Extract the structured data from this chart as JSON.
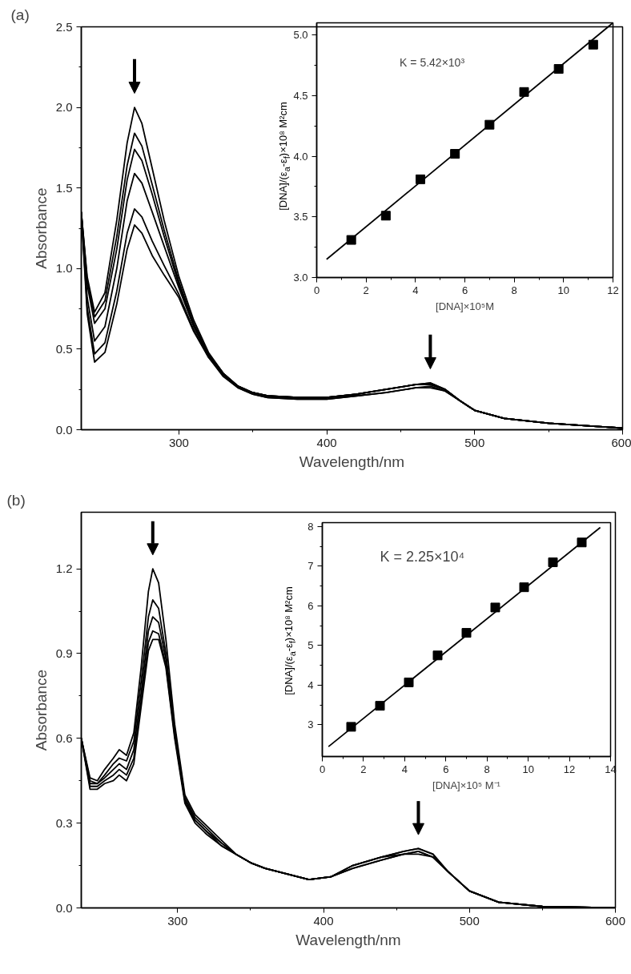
{
  "chart_data": [
    {
      "type": "line",
      "title": "(a)",
      "xlabel": "Wavelength/nm",
      "ylabel": "Absorbance",
      "x": [
        234,
        238,
        243,
        250,
        258,
        265,
        270,
        275,
        282,
        290,
        300,
        310,
        320,
        330,
        340,
        350,
        360,
        380,
        400,
        420,
        440,
        460,
        470,
        480,
        490,
        500,
        520,
        550,
        600
      ],
      "series": [
        {
          "color": "#000000",
          "values": [
            1.35,
            0.95,
            0.73,
            0.85,
            1.3,
            1.78,
            2.0,
            1.9,
            1.62,
            1.3,
            0.95,
            0.68,
            0.48,
            0.35,
            0.27,
            0.23,
            0.21,
            0.2,
            0.2,
            0.22,
            0.25,
            0.28,
            0.29,
            0.25,
            0.18,
            0.12,
            0.07,
            0.04,
            0.01
          ]
        },
        {
          "color": "#000000",
          "values": [
            1.35,
            0.93,
            0.7,
            0.8,
            1.2,
            1.64,
            1.84,
            1.76,
            1.52,
            1.24,
            0.92,
            0.66,
            0.47,
            0.35,
            0.27,
            0.23,
            0.21,
            0.2,
            0.2,
            0.22,
            0.25,
            0.28,
            0.29,
            0.25,
            0.18,
            0.12,
            0.07,
            0.04,
            0.01
          ]
        },
        {
          "color": "#000000",
          "values": [
            1.35,
            0.9,
            0.66,
            0.75,
            1.12,
            1.55,
            1.74,
            1.67,
            1.46,
            1.2,
            0.9,
            0.65,
            0.47,
            0.35,
            0.27,
            0.23,
            0.21,
            0.2,
            0.2,
            0.22,
            0.25,
            0.28,
            0.28,
            0.25,
            0.18,
            0.12,
            0.07,
            0.04,
            0.01
          ]
        },
        {
          "color": "#000000",
          "values": [
            1.35,
            0.82,
            0.55,
            0.64,
            1.0,
            1.42,
            1.59,
            1.53,
            1.35,
            1.14,
            0.88,
            0.64,
            0.46,
            0.34,
            0.27,
            0.23,
            0.21,
            0.2,
            0.2,
            0.22,
            0.25,
            0.28,
            0.28,
            0.25,
            0.18,
            0.12,
            0.07,
            0.04,
            0.01
          ]
        },
        {
          "color": "#000000",
          "values": [
            1.35,
            0.76,
            0.47,
            0.54,
            0.86,
            1.22,
            1.37,
            1.32,
            1.17,
            1.02,
            0.84,
            0.62,
            0.45,
            0.34,
            0.26,
            0.22,
            0.2,
            0.19,
            0.19,
            0.21,
            0.23,
            0.26,
            0.27,
            0.24,
            0.18,
            0.12,
            0.07,
            0.04,
            0.01
          ]
        },
        {
          "color": "#000000",
          "values": [
            1.35,
            0.72,
            0.42,
            0.48,
            0.78,
            1.12,
            1.27,
            1.22,
            1.08,
            0.96,
            0.82,
            0.61,
            0.45,
            0.33,
            0.26,
            0.22,
            0.2,
            0.19,
            0.19,
            0.21,
            0.23,
            0.26,
            0.26,
            0.24,
            0.18,
            0.12,
            0.07,
            0.04,
            0.01
          ]
        }
      ],
      "xlim": [
        234,
        600
      ],
      "ylim": [
        0,
        2.5
      ],
      "xticks": [
        300,
        400,
        500,
        600
      ],
      "yticks": [
        {
          "value": 0,
          "label": "0.0"
        },
        0.5,
        {
          "value": 1,
          "label": "1.0"
        },
        1.5,
        {
          "value": 2,
          "label": "2.0"
        },
        2.5
      ]
    },
    {
      "type": "scatter",
      "xlabel": "[DNA]×10⁵M",
      "ylabel": "[DNA]/(ε$_{a}$-ε$_{f}$)×10⁸ M²cm",
      "annotations": [
        "K = 5.42×10³"
      ],
      "series": [
        {
          "type": "scatter",
          "marker": "square",
          "color": "#000000",
          "x": [
            1.4,
            2.8,
            4.2,
            5.6,
            7.0,
            8.4,
            9.8,
            11.2
          ],
          "values": [
            3.31,
            3.51,
            3.81,
            4.02,
            4.26,
            4.53,
            4.72,
            4.92
          ]
        },
        {
          "type": "line",
          "marker": "none",
          "color": "#000000",
          "x": [
            0.4,
            12
          ],
          "values": [
            3.15,
            5.1
          ]
        }
      ],
      "xlim": [
        0,
        12
      ],
      "ylim": [
        3.0,
        5.1
      ],
      "xticks": [
        0,
        2,
        4,
        6,
        8,
        10,
        12
      ],
      "yticks": [
        {
          "value": 3,
          "label": "3.0"
        },
        3.5,
        {
          "value": 4,
          "label": "4.0"
        },
        4.5,
        {
          "value": 5,
          "label": "5.0"
        }
      ]
    },
    {
      "type": "line",
      "title": "(b)",
      "xlabel": "Wavelength/nm",
      "ylabel": "Absorbance",
      "x": [
        234,
        240,
        245,
        250,
        256,
        260,
        265,
        270,
        275,
        280,
        283,
        287,
        292,
        298,
        305,
        312,
        320,
        330,
        340,
        350,
        360,
        375,
        390,
        405,
        420,
        440,
        455,
        465,
        475,
        485,
        500,
        520,
        550,
        600
      ],
      "series": [
        {
          "color": "#000000",
          "values": [
            0.6,
            0.46,
            0.45,
            0.49,
            0.53,
            0.56,
            0.54,
            0.62,
            0.85,
            1.12,
            1.2,
            1.15,
            0.95,
            0.65,
            0.4,
            0.33,
            0.29,
            0.24,
            0.19,
            0.16,
            0.14,
            0.12,
            0.1,
            0.11,
            0.15,
            0.18,
            0.2,
            0.21,
            0.19,
            0.13,
            0.06,
            0.02,
            0.005,
            0.0
          ]
        },
        {
          "color": "#000000",
          "values": [
            0.6,
            0.45,
            0.44,
            0.47,
            0.51,
            0.53,
            0.52,
            0.59,
            0.8,
            1.03,
            1.09,
            1.06,
            0.9,
            0.63,
            0.39,
            0.32,
            0.28,
            0.23,
            0.19,
            0.16,
            0.14,
            0.12,
            0.1,
            0.11,
            0.15,
            0.18,
            0.2,
            0.21,
            0.19,
            0.13,
            0.06,
            0.02,
            0.005,
            0.0
          ]
        },
        {
          "color": "#000000",
          "values": [
            0.6,
            0.44,
            0.44,
            0.46,
            0.49,
            0.51,
            0.49,
            0.56,
            0.76,
            0.98,
            1.03,
            1.01,
            0.88,
            0.62,
            0.38,
            0.31,
            0.27,
            0.23,
            0.19,
            0.16,
            0.14,
            0.12,
            0.1,
            0.11,
            0.15,
            0.18,
            0.19,
            0.2,
            0.18,
            0.13,
            0.06,
            0.02,
            0.005,
            0.0
          ]
        },
        {
          "color": "#000000",
          "values": [
            0.6,
            0.43,
            0.43,
            0.45,
            0.47,
            0.49,
            0.47,
            0.53,
            0.73,
            0.94,
            0.98,
            0.97,
            0.86,
            0.61,
            0.38,
            0.31,
            0.27,
            0.22,
            0.19,
            0.16,
            0.14,
            0.12,
            0.1,
            0.11,
            0.14,
            0.17,
            0.19,
            0.2,
            0.18,
            0.13,
            0.06,
            0.02,
            0.005,
            0.0
          ]
        },
        {
          "color": "#000000",
          "values": [
            0.6,
            0.42,
            0.42,
            0.44,
            0.45,
            0.47,
            0.45,
            0.51,
            0.71,
            0.91,
            0.95,
            0.95,
            0.85,
            0.6,
            0.37,
            0.3,
            0.26,
            0.22,
            0.19,
            0.16,
            0.14,
            0.12,
            0.1,
            0.11,
            0.14,
            0.17,
            0.19,
            0.19,
            0.18,
            0.13,
            0.06,
            0.02,
            0.005,
            0.0
          ]
        }
      ],
      "xlim": [
        234,
        600
      ],
      "ylim": [
        0,
        1.4
      ],
      "xticks": [
        300,
        400,
        500,
        600
      ],
      "yticks": [
        {
          "value": 0,
          "label": "0.0"
        },
        0.3,
        0.6,
        0.9,
        1.2
      ]
    },
    {
      "type": "scatter",
      "xlabel": "[DNA]×10⁵ M⁻¹",
      "ylabel": "[DNA]/(ε$_{a}$-ε$_{f}$)×10⁸ M²cm",
      "annotations": [
        "K = 2.25×10⁴"
      ],
      "series": [
        {
          "type": "scatter",
          "marker": "square",
          "color": "#000000",
          "x": [
            1.4,
            2.8,
            4.2,
            5.6,
            7.0,
            8.4,
            9.8,
            11.2,
            12.6
          ],
          "values": [
            2.95,
            3.48,
            4.07,
            4.75,
            5.32,
            5.96,
            6.47,
            7.1,
            7.6
          ]
        },
        {
          "type": "line",
          "marker": "none",
          "color": "#000000",
          "x": [
            0.3,
            13.5
          ],
          "values": [
            2.45,
            7.98
          ]
        }
      ],
      "xlim": [
        0,
        14
      ],
      "ylim": [
        2.2,
        8.1
      ],
      "xticks": [
        0,
        2,
        4,
        6,
        8,
        10,
        12,
        14
      ],
      "yticks": [
        3,
        4,
        5,
        6,
        7,
        8
      ]
    }
  ]
}
